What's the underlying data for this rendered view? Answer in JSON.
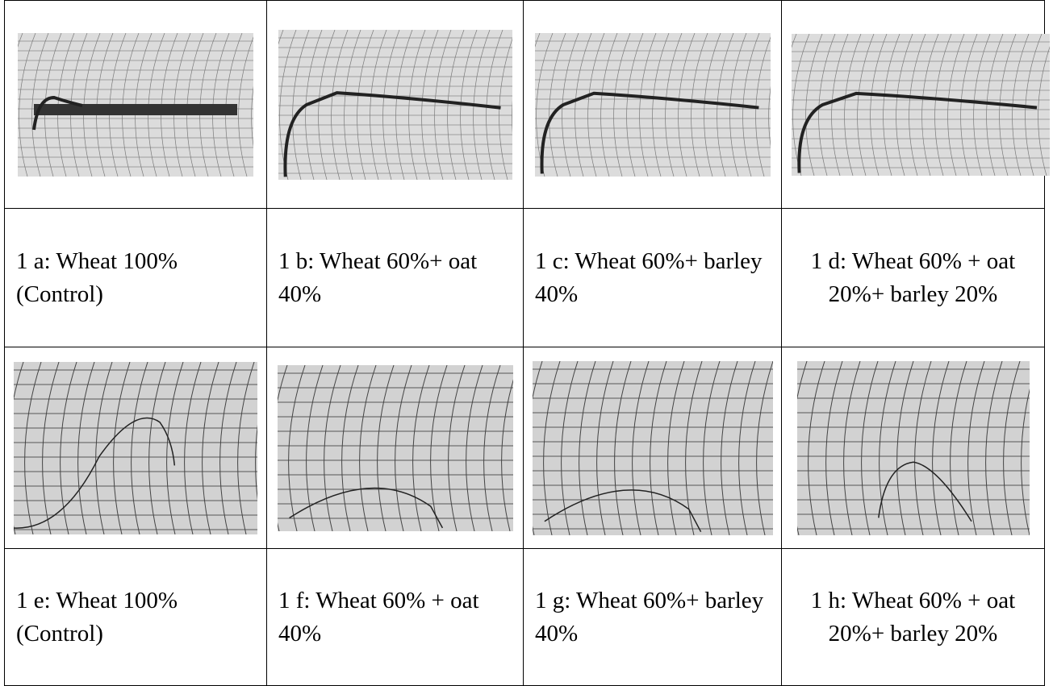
{
  "figure": {
    "captions": [
      [
        "1 a: Wheat 100% (Control)",
        "1 b: Wheat 60%+ oat 40%",
        "1 c: Wheat 60%+ barley 40%",
        "1 d: Wheat 60% + oat 20%+ barley 20%"
      ],
      [
        "1 e: Wheat 100% (Control)",
        "1 f: Wheat 60% + oat 40%",
        "1 g: Wheat 60%+ barley 40%",
        "1 h: Wheat 60% + oat 20%+ barley 20%"
      ]
    ]
  }
}
